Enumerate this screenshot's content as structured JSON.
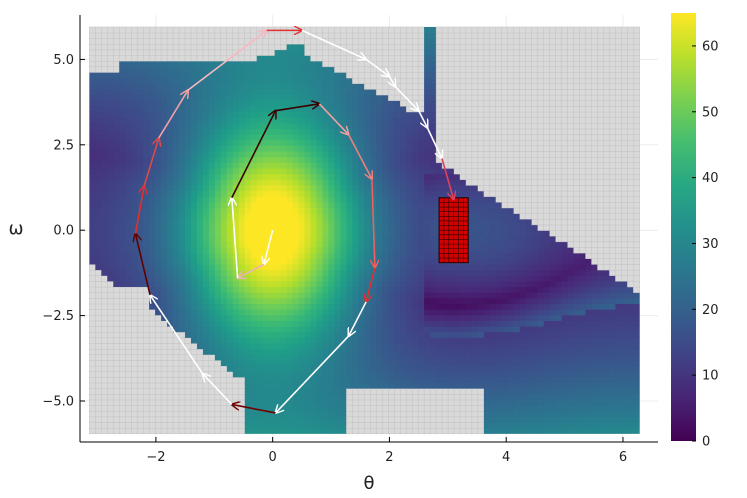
{
  "chart_data": {
    "type": "heatmap",
    "title": "",
    "xlabel": "θ",
    "ylabel": "ω",
    "xlim": [
      -3.3,
      6.6
    ],
    "ylim": [
      -6.2,
      6.3
    ],
    "x_ticks": [
      -2,
      0,
      2,
      4,
      6
    ],
    "y_ticks": [
      -5.0,
      -2.5,
      0.0,
      2.5,
      5.0
    ],
    "x_tick_labels": [
      "−2",
      "0",
      "2",
      "4",
      "6"
    ],
    "y_tick_labels": [
      "−5.0",
      "−2.5",
      "0.0",
      "2.5",
      "5.0"
    ],
    "grid": true,
    "colormap": "viridis",
    "colorbar": {
      "min": 0,
      "max": 65,
      "ticks": [
        0,
        10,
        20,
        30,
        40,
        50,
        60
      ],
      "tick_labels": [
        "0",
        "10",
        "20",
        "30",
        "40",
        "50",
        "60"
      ]
    },
    "grid_extent": {
      "theta": [
        -3.14,
        6.28
      ],
      "omega": [
        -5.95,
        5.95
      ]
    },
    "unreached_color": "#d9d9d9",
    "target_region": {
      "theta": [
        2.85,
        3.35
      ],
      "omega": [
        -0.95,
        0.95
      ],
      "color": "#d40000"
    },
    "trajectories": [
      {
        "colors": [
          "#e8c8d0",
          "#e04848"
        ],
        "points": [
          [
            0.0,
            0.0
          ],
          [
            -0.15,
            -1.0
          ],
          [
            -0.6,
            -1.4
          ],
          [
            -0.7,
            0.95
          ],
          [
            0.05,
            3.5
          ],
          [
            0.8,
            3.7
          ],
          [
            1.3,
            2.8
          ],
          [
            1.7,
            1.5
          ],
          [
            1.75,
            -1.1
          ],
          [
            1.6,
            -2.1
          ],
          [
            1.3,
            -3.1
          ],
          [
            0.05,
            -5.35
          ],
          [
            -0.7,
            -5.1
          ],
          [
            -1.2,
            -4.2
          ],
          [
            -2.1,
            -1.9
          ],
          [
            -2.35,
            -0.1
          ],
          [
            -2.2,
            1.3
          ],
          [
            -1.95,
            2.7
          ],
          [
            -1.45,
            4.1
          ],
          [
            -0.1,
            5.85
          ],
          [
            0.5,
            5.85
          ],
          [
            1.6,
            5.0
          ],
          [
            2.0,
            4.5
          ],
          [
            2.1,
            4.2
          ],
          [
            2.5,
            3.5
          ],
          [
            2.65,
            3.0
          ],
          [
            2.9,
            2.1
          ],
          [
            3.1,
            0.9
          ]
        ]
      }
    ]
  }
}
